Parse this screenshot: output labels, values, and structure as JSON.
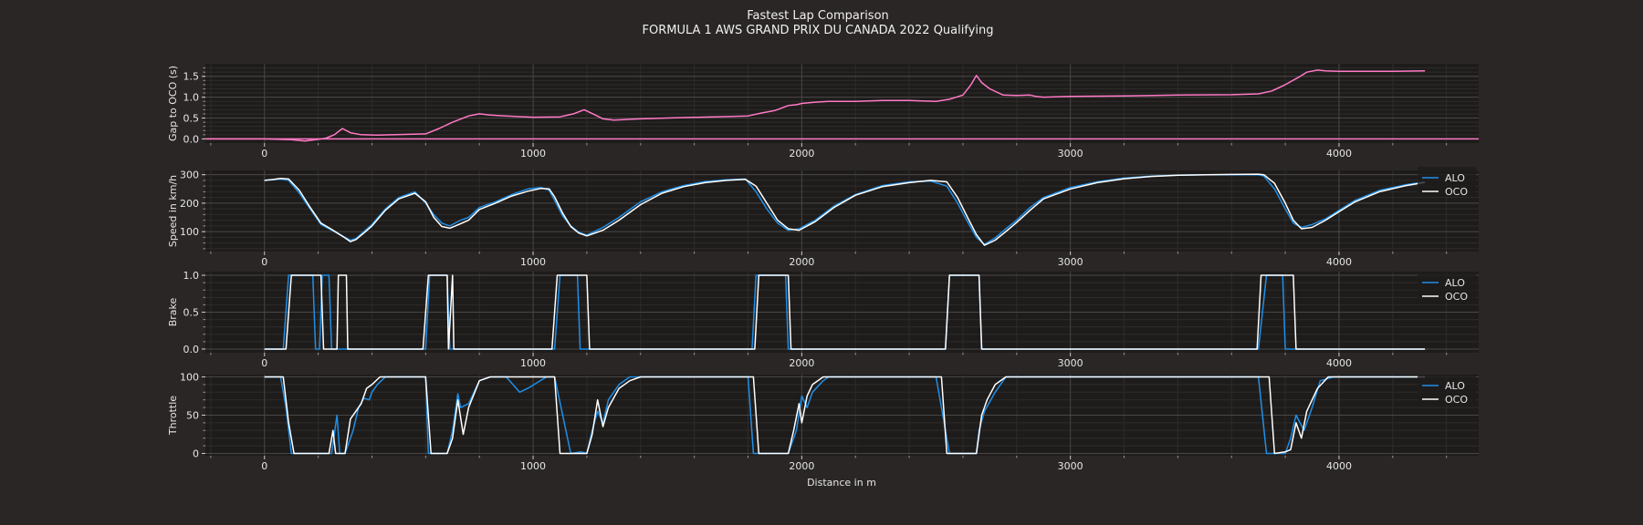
{
  "colors": {
    "figure_bg": "#292625",
    "axes_bg": "#1e1c1b",
    "grid_major": "#4a4646",
    "grid_minor": "#2e2b2b",
    "text": "#e6e6e6",
    "gap": "#ff79c6",
    "alo": "#1f8fe8",
    "oco": "#ffffff"
  },
  "chart_data": {
    "title": "Fastest Lap Comparison",
    "subtitle": "FORMULA 1 AWS GRAND PRIX DU CANADA 2022 Qualifying",
    "xlabel": "Distance in m",
    "xlim": [
      -220,
      4520
    ],
    "xticks": [
      0,
      1000,
      2000,
      3000,
      4000
    ],
    "panels": [
      {
        "type": "line",
        "ylabel": "Gap to OCO (s)",
        "ylim": [
          -0.1,
          1.8
        ],
        "yticks": [
          0.0,
          0.5,
          1.0,
          1.5
        ],
        "ytick_labels": [
          "0.0",
          "0.5",
          "1.0",
          "1.5"
        ],
        "series": [
          {
            "color_key": "gap",
            "x": [
              -220,
              0,
              100,
              150,
              200,
              230,
              260,
              290,
              320,
              360,
              420,
              600,
              650,
              700,
              760,
              800,
              840,
              900,
              1000,
              1100,
              1150,
              1190,
              1230,
              1260,
              1300,
              1330,
              1360,
              1400,
              1500,
              1800,
              1850,
              1900,
              1950,
              1980,
              2000,
              2050,
              2100,
              2200,
              2300,
              2400,
              2500,
              2550,
              2600,
              2630,
              2650,
              2670,
              2700,
              2750,
              2800,
              2850,
              2870,
              2900,
              3000,
              3200,
              3400,
              3600,
              3700,
              3750,
              3800,
              3850,
              3880,
              3920,
              3950,
              4000,
              4100,
              4200,
              4320
            ],
            "y": [
              0.0,
              0.0,
              -0.02,
              -0.05,
              -0.01,
              0.02,
              0.1,
              0.25,
              0.15,
              0.1,
              0.09,
              0.12,
              0.25,
              0.4,
              0.55,
              0.6,
              0.57,
              0.55,
              0.52,
              0.53,
              0.6,
              0.7,
              0.58,
              0.48,
              0.45,
              0.46,
              0.47,
              0.48,
              0.5,
              0.55,
              0.62,
              0.68,
              0.8,
              0.82,
              0.85,
              0.88,
              0.9,
              0.9,
              0.92,
              0.92,
              0.9,
              0.95,
              1.05,
              1.3,
              1.52,
              1.35,
              1.2,
              1.05,
              1.04,
              1.05,
              1.02,
              1.0,
              1.02,
              1.03,
              1.05,
              1.06,
              1.08,
              1.15,
              1.3,
              1.48,
              1.6,
              1.65,
              1.63,
              1.62,
              1.62,
              1.62,
              1.63
            ]
          },
          {
            "color_key": "gap",
            "x": [
              -220,
              4520
            ],
            "y": [
              0.0,
              0.0
            ]
          }
        ]
      },
      {
        "type": "line",
        "ylabel": "Speed in km/h",
        "ylim": [
          30,
          315
        ],
        "yticks": [
          100,
          200,
          300
        ],
        "ytick_labels": [
          "100",
          "200",
          "300"
        ],
        "legend": true,
        "series": [
          {
            "name": "ALO",
            "color_key": "alo",
            "x": [
              0,
              30,
              60,
              90,
              130,
              170,
              210,
              250,
              300,
              320,
              340,
              370,
              400,
              450,
              500,
              560,
              600,
              630,
              660,
              690,
              730,
              760,
              800,
              860,
              920,
              980,
              1030,
              1060,
              1080,
              1110,
              1140,
              1170,
              1200,
              1260,
              1320,
              1400,
              1480,
              1560,
              1640,
              1720,
              1790,
              1830,
              1870,
              1910,
              1950,
              1990,
              2050,
              2120,
              2200,
              2300,
              2400,
              2480,
              2540,
              2580,
              2620,
              2650,
              2680,
              2720,
              2760,
              2800,
              2850,
              2900,
              3000,
              3100,
              3200,
              3300,
              3400,
              3500,
              3600,
              3700,
              3720,
              3760,
              3800,
              3830,
              3860,
              3900,
              3950,
              4000,
              4060,
              4150,
              4250,
              4320
            ],
            "y": [
              280,
              282,
              285,
              280,
              235,
              180,
              125,
              105,
              80,
              70,
              75,
              100,
              125,
              180,
              220,
              240,
              200,
              160,
              130,
              120,
              140,
              150,
              185,
              205,
              230,
              250,
              255,
              245,
              210,
              155,
              120,
              98,
              88,
              115,
              150,
              205,
              240,
              262,
              276,
              282,
              285,
              240,
              180,
              130,
              105,
              110,
              140,
              190,
              230,
              262,
              275,
              278,
              260,
              200,
              130,
              80,
              55,
              78,
              110,
              140,
              185,
              220,
              255,
              275,
              288,
              295,
              298,
              300,
              300,
              300,
              295,
              250,
              180,
              130,
              115,
              125,
              145,
              175,
              210,
              245,
              265,
              275
            ]
          },
          {
            "name": "OCO",
            "color_key": "oco",
            "x": [
              0,
              30,
              60,
              90,
              130,
              170,
              210,
              250,
              300,
              320,
              340,
              370,
              400,
              450,
              500,
              560,
              600,
              630,
              660,
              690,
              730,
              760,
              800,
              860,
              920,
              980,
              1030,
              1060,
              1080,
              1110,
              1140,
              1170,
              1200,
              1260,
              1320,
              1400,
              1480,
              1560,
              1640,
              1720,
              1790,
              1830,
              1870,
              1910,
              1950,
              1990,
              2050,
              2120,
              2200,
              2300,
              2400,
              2480,
              2540,
              2580,
              2620,
              2650,
              2680,
              2720,
              2760,
              2800,
              2850,
              2900,
              3000,
              3100,
              3200,
              3300,
              3400,
              3500,
              3600,
              3700,
              3720,
              3760,
              3800,
              3830,
              3860,
              3900,
              3950,
              4000,
              4060,
              4150,
              4250,
              4320
            ],
            "y": [
              280,
              283,
              287,
              285,
              245,
              185,
              130,
              108,
              78,
              65,
              72,
              95,
              120,
              175,
              215,
              235,
              205,
              150,
              118,
              112,
              128,
              140,
              178,
              200,
              225,
              242,
              252,
              250,
              222,
              165,
              118,
              95,
              85,
              105,
              140,
              195,
              235,
              258,
              272,
              280,
              284,
              260,
              200,
              140,
              110,
              105,
              135,
              185,
              228,
              258,
              272,
              280,
              275,
              220,
              145,
              90,
              52,
              70,
              100,
              132,
              175,
              215,
              250,
              272,
              286,
              294,
              298,
              300,
              301,
              302,
              300,
              270,
              200,
              140,
              110,
              115,
              140,
              170,
              205,
              240,
              262,
              273
            ]
          }
        ]
      },
      {
        "type": "line",
        "ylabel": "Brake",
        "ylim": [
          -0.05,
          1.05
        ],
        "yticks": [
          0.0,
          0.5,
          1.0
        ],
        "ytick_labels": [
          "0.0",
          "0.5",
          "1.0"
        ],
        "legend": true,
        "series": [
          {
            "name": "ALO",
            "color_key": "alo",
            "x": [
              0,
              70,
              90,
              180,
              190,
              205,
              215,
              240,
              250,
              300,
              310,
              600,
              615,
              680,
              690,
              1080,
              1100,
              1165,
              1175,
              1815,
              1830,
              1940,
              1950,
              2535,
              2550,
              2660,
              2670,
              3700,
              3730,
              3790,
              3800,
              4320
            ],
            "y": [
              0,
              0,
              1,
              1,
              0,
              0,
              1,
              1,
              0,
              0,
              0,
              0,
              1,
              1,
              0,
              0,
              1,
              1,
              0,
              0,
              1,
              1,
              0,
              0,
              1,
              1,
              0,
              0,
              1,
              1,
              0,
              0
            ]
          },
          {
            "name": "OCO",
            "color_key": "oco",
            "x": [
              0,
              80,
              100,
              210,
              220,
              270,
              275,
              305,
              310,
              590,
              610,
              680,
              685,
              700,
              705,
              1070,
              1090,
              1200,
              1210,
              1825,
              1840,
              1950,
              1960,
              2535,
              2550,
              2660,
              2670,
              3695,
              3710,
              3830,
              3840,
              4320
            ],
            "y": [
              0,
              0,
              1,
              1,
              0,
              0,
              1,
              1,
              0,
              0,
              1,
              1,
              0,
              1,
              0,
              0,
              1,
              1,
              0,
              0,
              1,
              1,
              0,
              0,
              1,
              1,
              0,
              0,
              1,
              1,
              0,
              0
            ]
          }
        ]
      },
      {
        "type": "line",
        "ylabel": "Throttle",
        "ylim": [
          -3,
          103
        ],
        "yticks": [
          0,
          50,
          100
        ],
        "ytick_labels": [
          "0",
          "50",
          "100"
        ],
        "legend": true,
        "series": [
          {
            "name": "ALO",
            "color_key": "alo",
            "x": [
              0,
              60,
              80,
              100,
              200,
              250,
              270,
              280,
              300,
              330,
              350,
              370,
              390,
              400,
              420,
              450,
              470,
              600,
              610,
              680,
              700,
              720,
              730,
              760,
              800,
              840,
              900,
              950,
              980,
              1050,
              1060,
              1080,
              1140,
              1180,
              1200,
              1220,
              1240,
              1260,
              1280,
              1320,
              1360,
              1400,
              1450,
              1500,
              1800,
              1820,
              1880,
              1950,
              1980,
              2000,
              2020,
              2040,
              2080,
              2100,
              2500,
              2550,
              2600,
              2650,
              2660,
              2680,
              2720,
              2760,
              2800,
              3700,
              3730,
              3800,
              3820,
              3840,
              3870,
              3900,
              3930,
              3980,
              4320
            ],
            "y": [
              100,
              100,
              60,
              0,
              0,
              0,
              50,
              0,
              0,
              30,
              60,
              72,
              70,
              80,
              90,
              100,
              100,
              100,
              0,
              0,
              30,
              78,
              60,
              65,
              95,
              100,
              100,
              80,
              85,
              100,
              100,
              100,
              0,
              2,
              0,
              30,
              55,
              40,
              70,
              90,
              100,
              100,
              100,
              100,
              100,
              0,
              0,
              0,
              30,
              75,
              60,
              80,
              95,
              100,
              100,
              0,
              0,
              0,
              30,
              55,
              80,
              100,
              100,
              100,
              0,
              0,
              20,
              50,
              30,
              60,
              95,
              100,
              100
            ]
          },
          {
            "name": "OCO",
            "color_key": "oco",
            "x": [
              0,
              70,
              90,
              110,
              200,
              240,
              255,
              265,
              300,
              320,
              340,
              360,
              380,
              400,
              430,
              460,
              600,
              620,
              680,
              700,
              720,
              740,
              760,
              800,
              840,
              900,
              950,
              1000,
              1080,
              1100,
              1150,
              1200,
              1220,
              1240,
              1260,
              1280,
              1320,
              1360,
              1400,
              1450,
              1820,
              1840,
              1950,
              1970,
              1990,
              2000,
              2020,
              2040,
              2080,
              2100,
              2520,
              2540,
              2650,
              2670,
              2690,
              2720,
              2760,
              2800,
              3740,
              3760,
              3800,
              3820,
              3840,
              3860,
              3880,
              3920,
              3960,
              4000,
              4320
            ],
            "y": [
              100,
              100,
              40,
              0,
              0,
              0,
              30,
              0,
              0,
              45,
              55,
              65,
              85,
              90,
              100,
              100,
              100,
              0,
              0,
              20,
              70,
              25,
              60,
              95,
              100,
              100,
              100,
              100,
              100,
              0,
              0,
              0,
              25,
              70,
              35,
              60,
              85,
              95,
              100,
              100,
              100,
              0,
              0,
              30,
              65,
              40,
              75,
              90,
              100,
              100,
              100,
              0,
              0,
              50,
              70,
              90,
              100,
              100,
              100,
              0,
              2,
              5,
              40,
              20,
              55,
              85,
              100,
              100,
              100
            ]
          }
        ]
      }
    ]
  }
}
